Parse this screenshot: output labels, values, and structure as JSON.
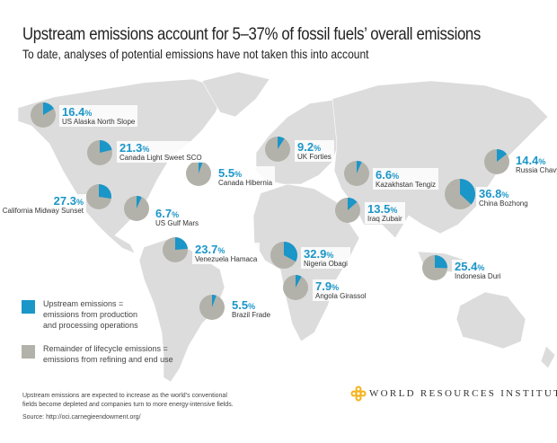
{
  "header": {
    "title": "Upstream emissions account for 5–37% of fossil fuels’ overall emissions",
    "subtitle": "To date, analyses of potential emissions have not taken this into account"
  },
  "legend": {
    "upstream": "Upstream emissions = emissions from production and processing operations",
    "upstream_lines": [
      "Upstream emissions =",
      "emissions from production",
      "and processing operations"
    ],
    "remainder": "Remainder of lifecycle emissions = emissions from refining and end use",
    "remainder_lines": [
      "Remainder of lifecycle emissions =",
      "emissions from refining and end use"
    ]
  },
  "footer": {
    "note": "Upstream emissions are expected to increase as the world’s conventional fields become depleted and companies turn to more energy-intensive fields.",
    "source": "Source: http://oci.carnegieendowment.org/",
    "brand": "WORLD RESOURCES INSTITUTE"
  },
  "colors": {
    "upstream": "#1a96c8",
    "remainder": "#b2b2aa",
    "land": "#dcdcdc"
  },
  "chart_data": {
    "type": "pie",
    "title": "Upstream emissions account for 5–37% of fossil fuels’ overall emissions",
    "unit": "%",
    "series": [
      "Upstream emissions",
      "Remainder of lifecycle emissions"
    ],
    "fields": [
      {
        "name": "US Alaska North Slope",
        "upstream": 16.4,
        "pct": "16.4"
      },
      {
        "name": "Canada Light Sweet SCO",
        "upstream": 21.3,
        "pct": "21.3"
      },
      {
        "name": "Canada Hibernia",
        "upstream": 5.5,
        "pct": "5.5"
      },
      {
        "name": "California Midway Sunset",
        "upstream": 27.3,
        "pct": "27.3"
      },
      {
        "name": "US Gulf Mars",
        "upstream": 6.7,
        "pct": "6.7"
      },
      {
        "name": "UK Forties",
        "upstream": 9.2,
        "pct": "9.2"
      },
      {
        "name": "Kazakhstan Tengiz",
        "upstream": 6.6,
        "pct": "6.6"
      },
      {
        "name": "Iraq Zubair",
        "upstream": 13.5,
        "pct": "13.5"
      },
      {
        "name": "Russia Chavyo",
        "upstream": 14.4,
        "pct": "14.4"
      },
      {
        "name": "China Bozhong",
        "upstream": 36.8,
        "pct": "36.8"
      },
      {
        "name": "Venezuela Hamaca",
        "upstream": 23.7,
        "pct": "23.7"
      },
      {
        "name": "Nigeria Obagi",
        "upstream": 32.9,
        "pct": "32.9"
      },
      {
        "name": "Angola Girassol",
        "upstream": 7.9,
        "pct": "7.9"
      },
      {
        "name": "Indonesia Duri",
        "upstream": 25.4,
        "pct": "25.4"
      },
      {
        "name": "Brazil Frade",
        "upstream": 5.5,
        "pct": "5.5"
      }
    ]
  }
}
